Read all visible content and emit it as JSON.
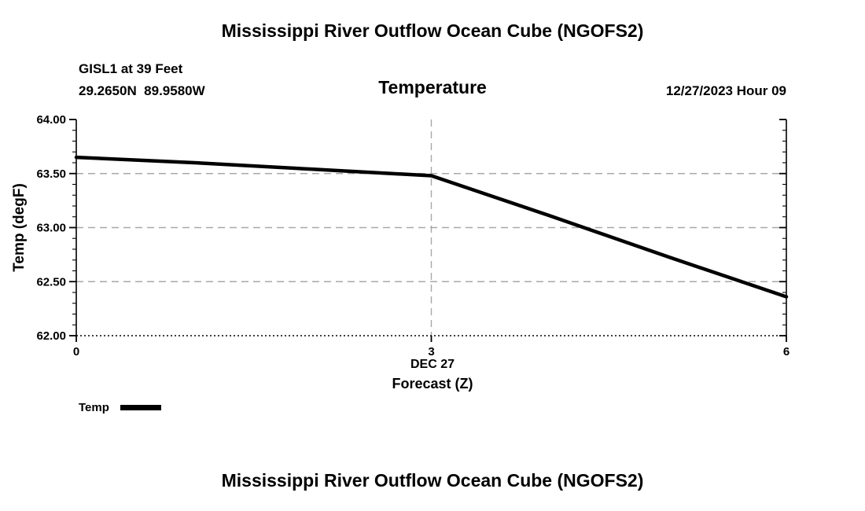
{
  "page": {
    "top_title": "Mississippi River Outflow Ocean Cube (NGOFS2)",
    "bottom_title": "Mississippi River Outflow Ocean Cube (NGOFS2)"
  },
  "header": {
    "station": "GISL1 at 39 Feet",
    "coordinates": "29.2650N  89.9580W",
    "plot_title": "Temperature",
    "datetime": "12/27/2023 Hour 09"
  },
  "axes": {
    "ylabel": "Temp (degF)",
    "xlabel_line1": "DEC 27",
    "xlabel_line2": "Forecast (Z)"
  },
  "legend": {
    "label": "Temp",
    "color": "#000000"
  },
  "chart_data": {
    "type": "line",
    "title": "Temperature",
    "xlabel": "Forecast (Z)",
    "ylabel": "Temp (degF)",
    "x": [
      0,
      1,
      2,
      3,
      4,
      5,
      6
    ],
    "series": [
      {
        "name": "Temp",
        "color": "#000000",
        "values": [
          63.65,
          63.6,
          63.54,
          63.48,
          63.11,
          62.73,
          62.36
        ]
      }
    ],
    "xlim": [
      0,
      6
    ],
    "ylim": [
      62.0,
      64.0
    ],
    "xticks": [
      0,
      3,
      6
    ],
    "xtick_labels": [
      "0",
      "3",
      "6"
    ],
    "yticks": [
      62.0,
      62.5,
      63.0,
      63.5,
      64.0
    ],
    "ytick_labels": [
      "62.00",
      "62.50",
      "63.00",
      "63.50",
      "64.00"
    ],
    "y_minor_step": 0.1,
    "grid": true,
    "grid_color": "#a8a8a8",
    "legend_position": "bottom-left"
  }
}
